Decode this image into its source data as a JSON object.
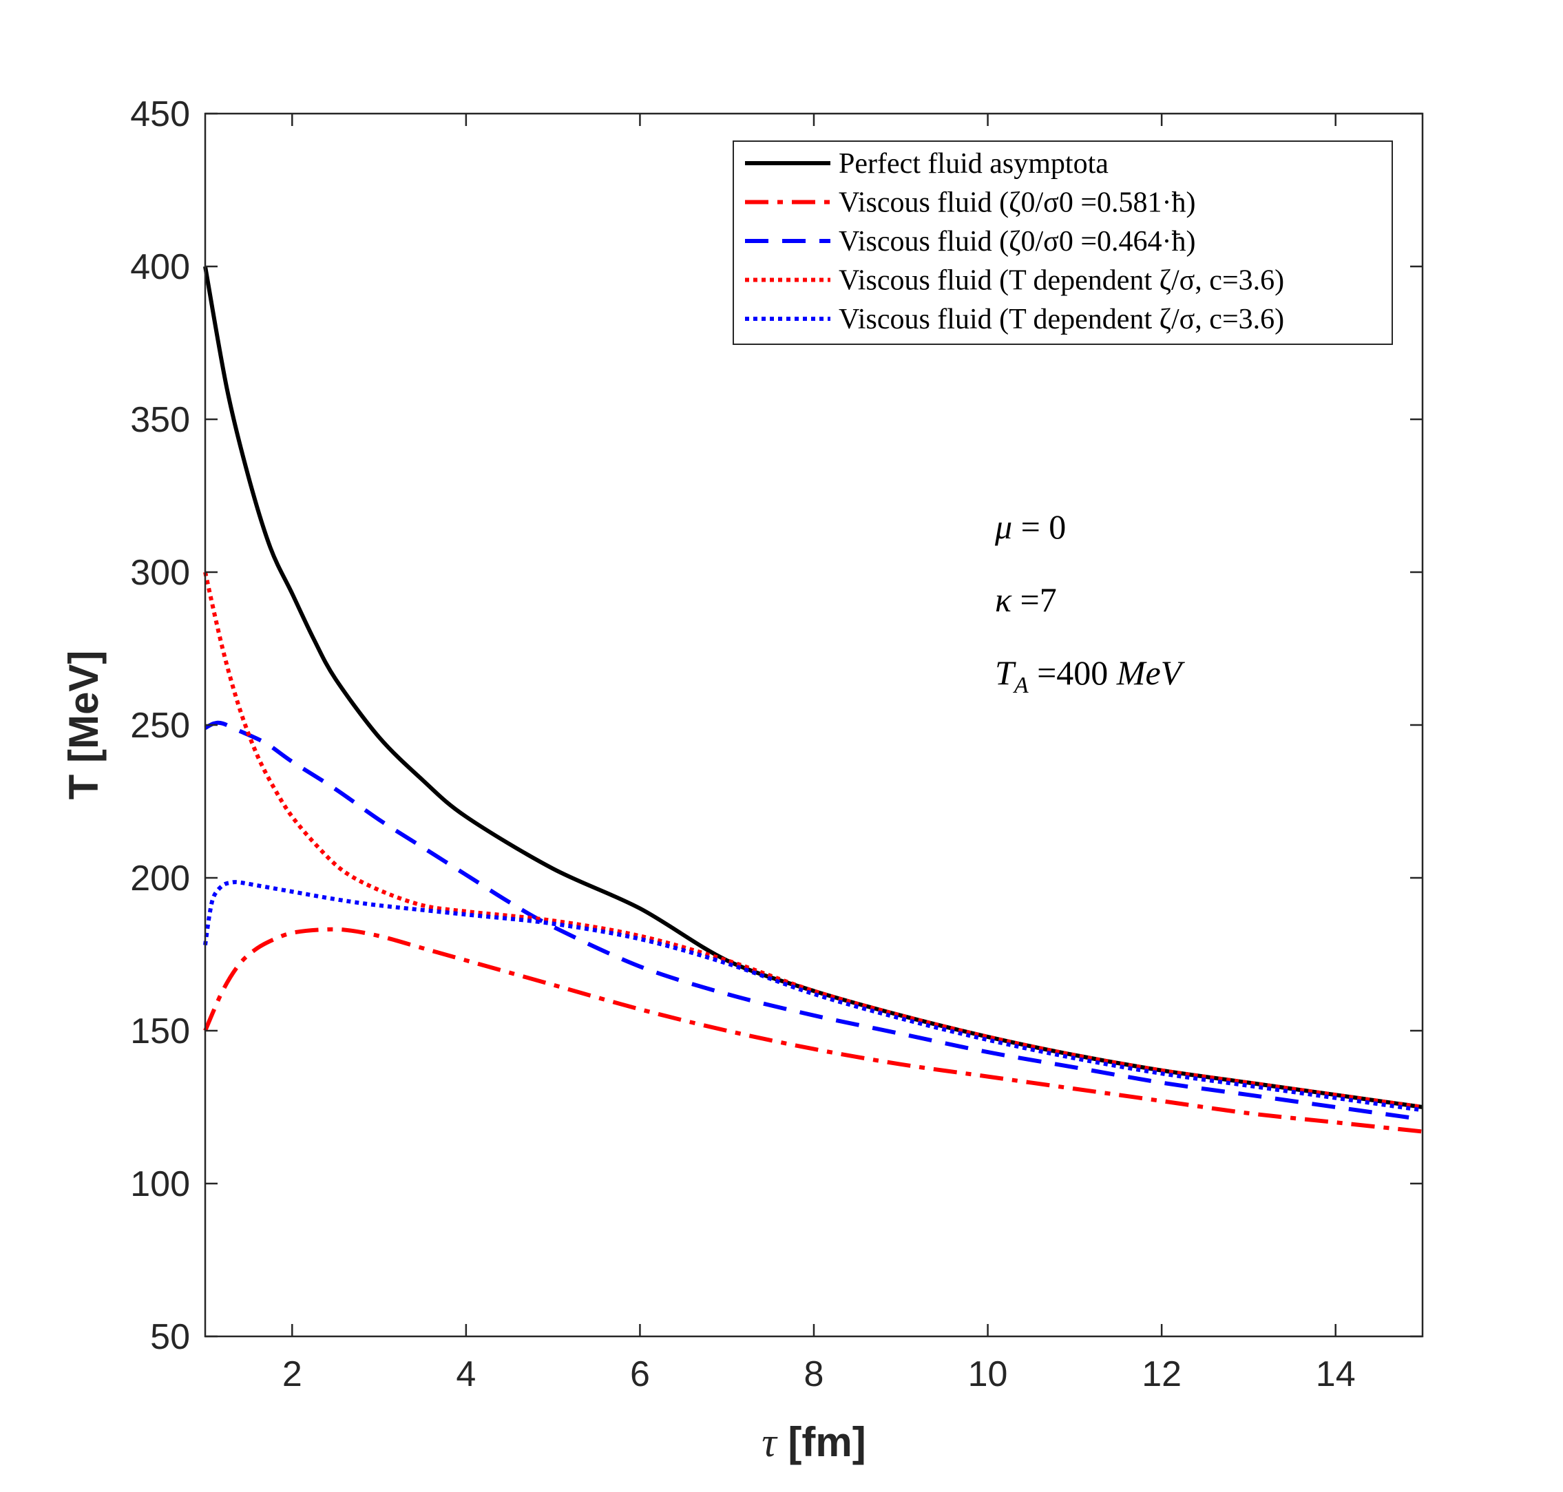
{
  "chart_data": {
    "type": "line",
    "xlabel_symbol": "τ",
    "xlabel_unit": "[fm]",
    "ylabel": "T [MeV]",
    "xlim": [
      1,
      15
    ],
    "ylim": [
      50,
      450
    ],
    "xticks": [
      2,
      4,
      6,
      8,
      10,
      12,
      14
    ],
    "yticks": [
      50,
      100,
      150,
      200,
      250,
      300,
      350,
      400,
      450
    ],
    "grid": false,
    "legend_position": "top-right",
    "colors": {
      "black": "#000000",
      "red": "#ff0000",
      "blue": "#0000ff"
    },
    "series": [
      {
        "name": "Perfect fluid asymptota",
        "color": "#000000",
        "style": "solid",
        "x": [
          1,
          1.25,
          1.5,
          1.75,
          2,
          2.25,
          2.5,
          3,
          3.5,
          4,
          5,
          6,
          7,
          8,
          9,
          10,
          11,
          12,
          13,
          14,
          15
        ],
        "y": [
          400,
          360,
          331,
          308,
          293,
          278,
          265,
          246,
          232,
          220,
          203,
          190,
          173,
          163,
          155,
          148,
          142,
          137,
          133,
          129,
          125
        ]
      },
      {
        "name": "Viscous fluid (ζ0/σ0 =0.581·ħ)",
        "color": "#ff0000",
        "style": "dashdot",
        "x": [
          1,
          1.2,
          1.4,
          1.6,
          1.8,
          2,
          2.3,
          2.6,
          3,
          3.5,
          4,
          5,
          6,
          7,
          8,
          9,
          10,
          11,
          12,
          13,
          14,
          15
        ],
        "y": [
          150,
          163,
          172,
          177,
          180,
          182,
          183,
          183,
          181,
          177,
          173,
          165,
          157,
          150,
          144,
          139,
          135,
          131,
          127,
          123,
          120,
          117
        ]
      },
      {
        "name": "Viscous fluid (ζ0/σ0 =0.464·ħ)",
        "color": "#0000ff",
        "style": "dashed",
        "x": [
          1,
          1.1,
          1.2,
          1.4,
          1.7,
          2,
          2.5,
          3,
          3.5,
          4,
          4.5,
          5,
          6,
          7,
          8,
          9,
          10,
          11,
          12,
          13,
          14,
          15
        ],
        "y": [
          249,
          250.5,
          250.5,
          248,
          244,
          238,
          229,
          219,
          210,
          201,
          192,
          184,
          171,
          162,
          155,
          149,
          143,
          138,
          133,
          129,
          125,
          121
        ]
      },
      {
        "name": "Viscous fluid (T dependent ζ/σ, c=3.6)",
        "color": "#ff0000",
        "style": "dotted",
        "x": [
          1,
          1.2,
          1.4,
          1.6,
          1.8,
          2,
          2.3,
          2.6,
          3,
          3.5,
          4,
          5,
          6,
          7,
          8,
          9,
          10,
          11,
          12,
          13,
          14,
          15
        ],
        "y": [
          300,
          275,
          255,
          240,
          229,
          220,
          210,
          202,
          196,
          191,
          189,
          186,
          181,
          173,
          163,
          155,
          148,
          142,
          137,
          133,
          129,
          125
        ]
      },
      {
        "name": "Viscous fluid (T dependent ζ/σ, c=3.6)",
        "color": "#0000ff",
        "style": "dotted",
        "x": [
          1,
          1.05,
          1.1,
          1.2,
          1.3,
          1.4,
          1.6,
          2,
          2.5,
          3,
          4,
          5,
          6,
          7,
          8,
          9,
          10,
          11,
          12,
          13,
          14,
          15
        ],
        "y": [
          178,
          188,
          194,
          197.5,
          198.5,
          198.5,
          197.5,
          195.5,
          193,
          191,
          188,
          185,
          180,
          172,
          162,
          154,
          147,
          141,
          136,
          132,
          128,
          124
        ]
      }
    ],
    "annotations": {
      "mu": {
        "sym": "μ",
        "rest": " = 0"
      },
      "kappa": {
        "sym": "κ",
        "rest": " =7"
      },
      "ta": {
        "sym": "T",
        "sub": "A",
        "mid": " =400 ",
        "unit": "MeV"
      }
    }
  }
}
